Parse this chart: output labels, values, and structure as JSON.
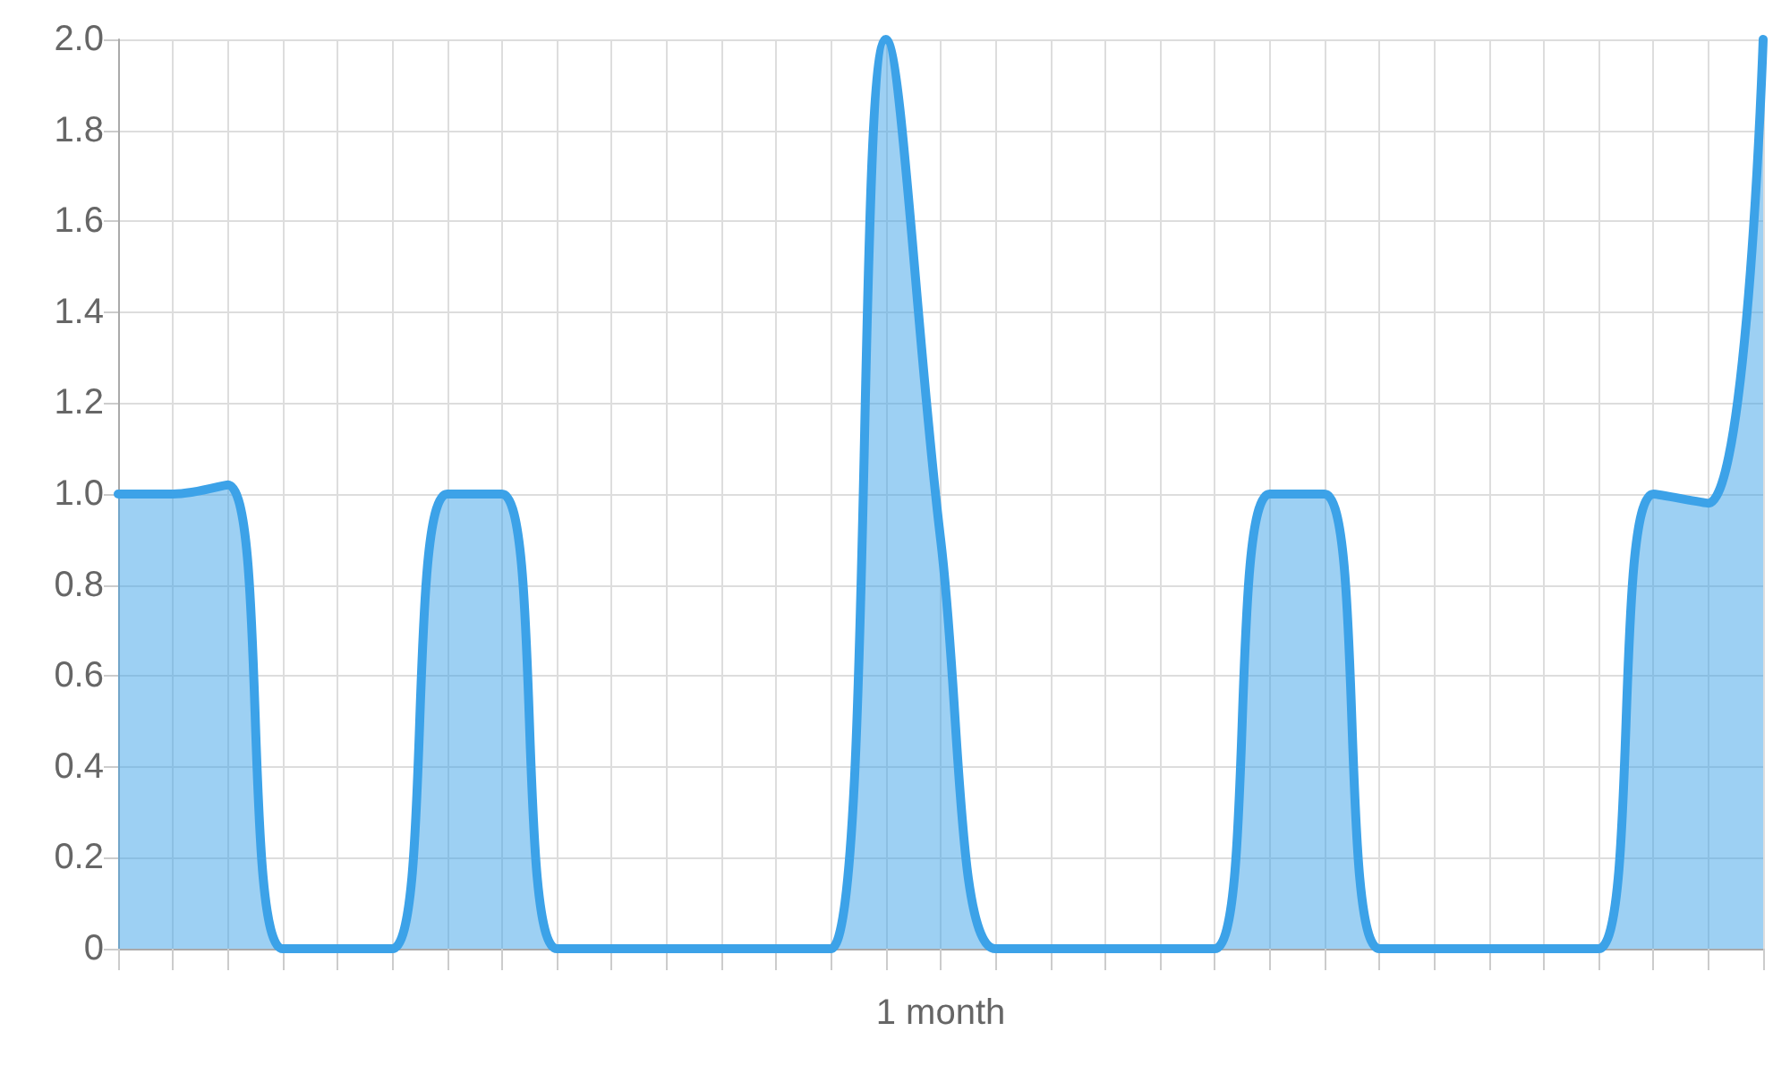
{
  "chart_data": {
    "type": "area",
    "xlabel": "1 month",
    "categories": [
      null,
      null,
      null,
      null,
      null,
      null,
      null,
      null,
      null,
      null,
      null,
      null,
      null,
      null,
      null,
      null,
      null,
      null,
      null,
      null,
      null,
      null,
      null,
      null,
      null,
      null,
      null,
      null,
      null,
      null,
      null
    ],
    "series": [
      {
        "color": "#3ca2e8",
        "values": [
          1,
          1,
          1.02,
          0,
          0,
          0,
          1,
          1,
          0,
          0,
          0,
          0,
          0,
          0,
          2,
          0.9,
          0,
          0,
          0,
          0,
          0,
          1,
          1,
          0,
          0,
          0,
          0,
          0,
          1,
          0.98,
          2
        ]
      }
    ],
    "ylim": [
      0,
      2
    ],
    "yticks": [
      0,
      0.2,
      0.4,
      0.6,
      0.8,
      {
        "value": 1,
        "label": "1.0"
      },
      1.2,
      1.4,
      1.6,
      1.8,
      {
        "value": 2,
        "label": "2.0"
      }
    ],
    "grid": true,
    "marker": "none",
    "line_style": "solid"
  }
}
